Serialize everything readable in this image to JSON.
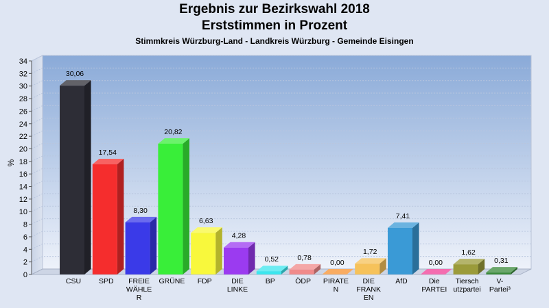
{
  "chart_data": {
    "type": "bar",
    "title": "Ergebnis zur Bezirkswahl 2018",
    "subtitle": "Erststimmen in Prozent",
    "caption": "Stimmkreis Würzburg-Land - Landkreis Würzburg - Gemeinde Eisingen",
    "ylabel": "%",
    "ylim": [
      0,
      34
    ],
    "yticks": [
      0,
      2,
      4,
      6,
      8,
      10,
      12,
      14,
      16,
      18,
      20,
      22,
      24,
      26,
      28,
      30,
      32,
      34
    ],
    "grid": true,
    "categories": [
      [
        "CSU"
      ],
      [
        "SPD"
      ],
      [
        "FREIE",
        "WÄHLE",
        "R"
      ],
      [
        "GRÜNE"
      ],
      [
        "FDP"
      ],
      [
        "DIE",
        "LINKE"
      ],
      [
        "BP"
      ],
      [
        "ÖDP"
      ],
      [
        "PIRATE",
        "N"
      ],
      [
        "DIE",
        "FRANK",
        "EN"
      ],
      [
        "AfD"
      ],
      [
        "Die",
        "PARTEI"
      ],
      [
        "Tiersch",
        "utzpartei"
      ],
      [
        "V-",
        "Partei³"
      ]
    ],
    "values": [
      30.06,
      17.54,
      8.3,
      20.82,
      6.63,
      4.28,
      0.52,
      0.78,
      0.0,
      1.72,
      7.41,
      0.0,
      1.62,
      0.31
    ],
    "value_labels": [
      "30,06",
      "17,54",
      "8,30",
      "20,82",
      "6,63",
      "4,28",
      "0,52",
      "0,78",
      "0,00",
      "1,72",
      "7,41",
      "0,00",
      "1,62",
      "0,31"
    ],
    "colors": [
      "#2d2d36",
      "#f52d2d",
      "#3a3ae8",
      "#39ee39",
      "#f8f83c",
      "#9b3bf0",
      "#3ce6ee",
      "#f08a8a",
      "#f7902d",
      "#f6c25a",
      "#3a9ad6",
      "#f03c96",
      "#9b9b3a",
      "#3a8a3a"
    ]
  }
}
